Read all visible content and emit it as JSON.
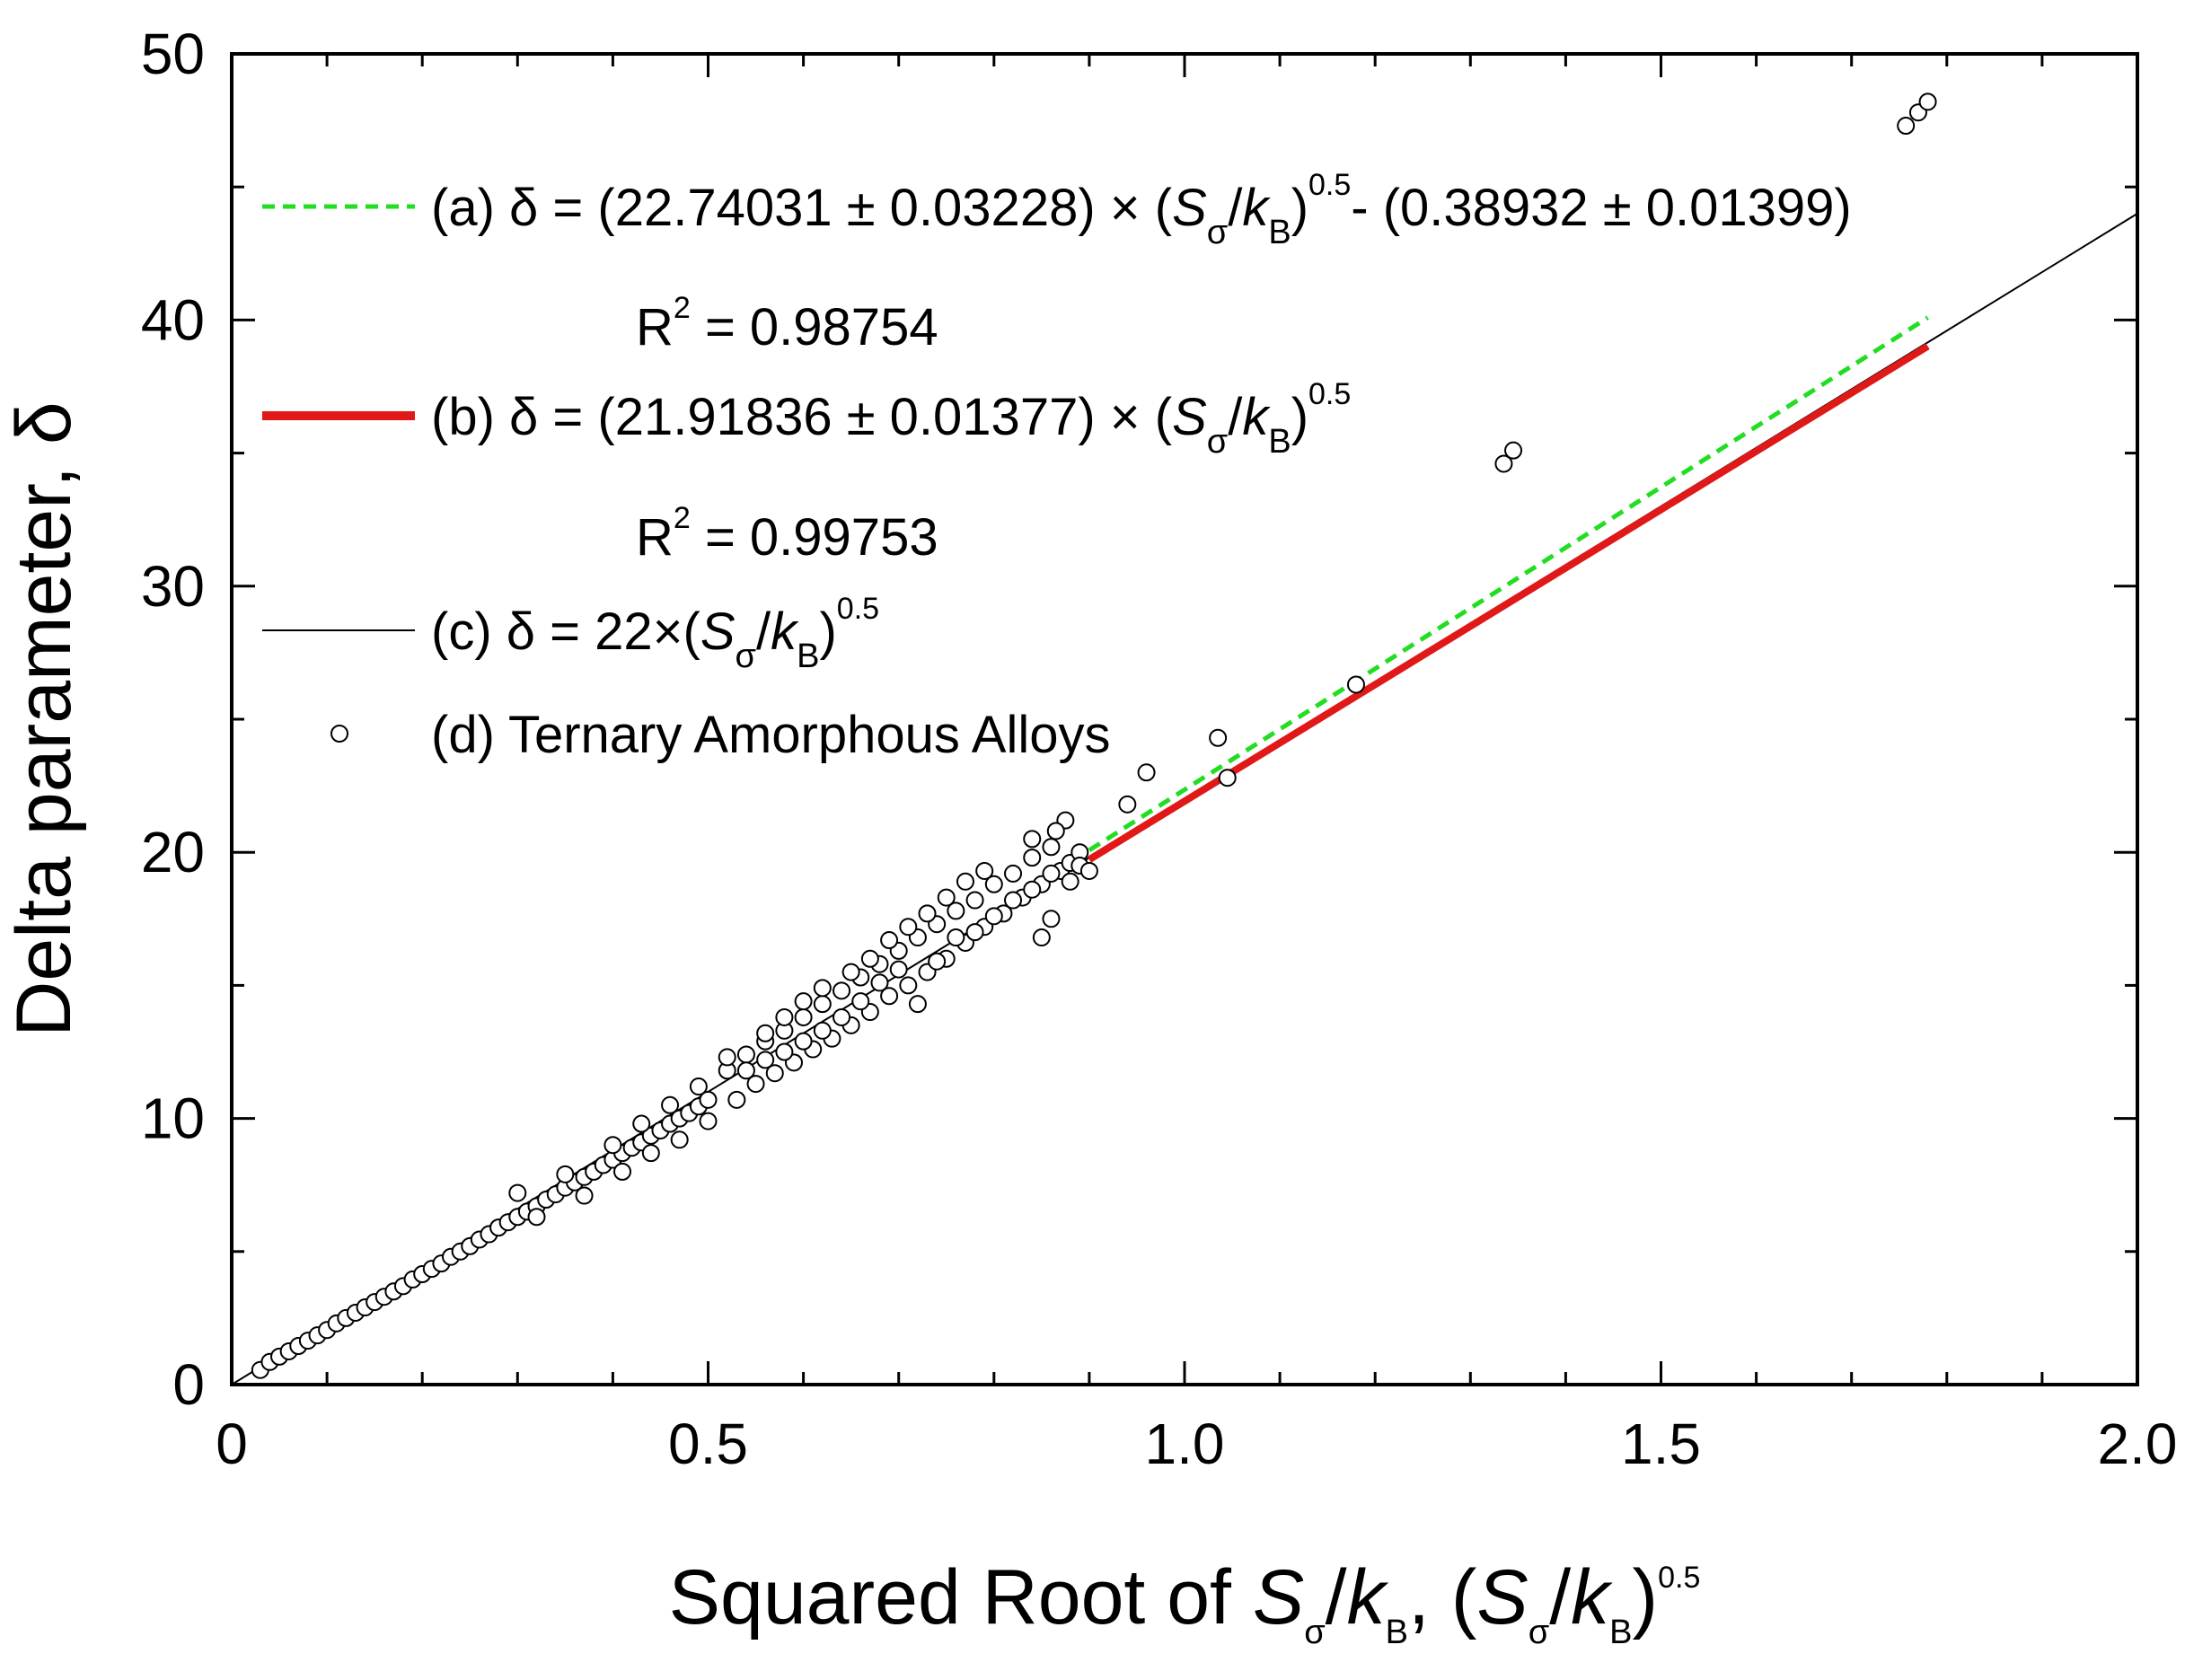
{
  "chart_data": {
    "type": "scatter",
    "xlabel": {
      "prefix": "Squared Root of ",
      "S": "S",
      "sigma": "σ",
      "slash": "/",
      "k": "k",
      "B": "B",
      "sep": ", (",
      "close": ")",
      "exp": "0.5"
    },
    "ylabel": "Delta parameter, δ",
    "xlim": [
      0,
      2.0
    ],
    "ylim": [
      0,
      50
    ],
    "x_ticks": [
      0,
      0.5,
      1.0,
      1.5,
      2.0
    ],
    "x_tick_labels": [
      "0",
      "0.5",
      "1.0",
      "1.5",
      "2.0"
    ],
    "y_ticks": [
      0,
      10,
      20,
      30,
      40,
      50
    ],
    "y_tick_labels": [
      "0",
      "10",
      "20",
      "30",
      "40",
      "50"
    ],
    "colors": {
      "fit_a": "#22dd22",
      "fit_b": "#e01818",
      "fit_c": "#000000",
      "points": "#000000"
    },
    "legend": {
      "a_prefix": "(a) δ = (22.74031 ± 0.03228) × (",
      "a_suffix": "- (0.38932 ± 0.01399)",
      "a_r2": "= 0.98754",
      "b_prefix": "(b) δ = (21.91836 ±  0.01377) × (",
      "b_r2": "= 0.99753",
      "c_prefix": "(c) δ = 22×(",
      "d_label": "(d) Ternary Amorphous Alloys",
      "R": "R",
      "two": "2",
      "S": "S",
      "sigma": "σ",
      "slash": "/",
      "k": "k",
      "B": "B",
      "close": ")",
      "exp": "0.5"
    },
    "series": [
      {
        "key": "a",
        "kind": "line",
        "style": "dashed",
        "slope": 22.74031,
        "intercept": -0.38932,
        "x_range": [
          0.9,
          1.78
        ]
      },
      {
        "key": "b",
        "kind": "line",
        "style": "solid-thick",
        "slope": 21.91836,
        "intercept": 0,
        "x_range": [
          0.9,
          1.78
        ]
      },
      {
        "key": "c",
        "kind": "line",
        "style": "solid-thin",
        "slope": 22,
        "intercept": 0,
        "x_range": [
          0,
          2.0
        ]
      },
      {
        "key": "d",
        "kind": "scatter",
        "points": [
          [
            0.03,
            0.55
          ],
          [
            0.04,
            0.85
          ],
          [
            0.05,
            1.05
          ],
          [
            0.06,
            1.25
          ],
          [
            0.07,
            1.45
          ],
          [
            0.08,
            1.65
          ],
          [
            0.09,
            1.85
          ],
          [
            0.1,
            2.05
          ],
          [
            0.11,
            2.3
          ],
          [
            0.12,
            2.5
          ],
          [
            0.13,
            2.7
          ],
          [
            0.14,
            2.9
          ],
          [
            0.15,
            3.1
          ],
          [
            0.16,
            3.3
          ],
          [
            0.17,
            3.5
          ],
          [
            0.18,
            3.7
          ],
          [
            0.19,
            3.95
          ],
          [
            0.2,
            4.15
          ],
          [
            0.21,
            4.35
          ],
          [
            0.22,
            4.55
          ],
          [
            0.23,
            4.8
          ],
          [
            0.24,
            5.0
          ],
          [
            0.25,
            5.2
          ],
          [
            0.26,
            5.45
          ],
          [
            0.27,
            5.65
          ],
          [
            0.28,
            5.9
          ],
          [
            0.29,
            6.1
          ],
          [
            0.3,
            6.3
          ],
          [
            0.31,
            6.5
          ],
          [
            0.32,
            6.7
          ],
          [
            0.33,
            6.95
          ],
          [
            0.34,
            7.15
          ],
          [
            0.35,
            7.4
          ],
          [
            0.36,
            7.6
          ],
          [
            0.37,
            7.8
          ],
          [
            0.38,
            8.0
          ],
          [
            0.39,
            8.25
          ],
          [
            0.4,
            8.45
          ],
          [
            0.41,
            8.7
          ],
          [
            0.42,
            8.9
          ],
          [
            0.43,
            9.1
          ],
          [
            0.44,
            9.35
          ],
          [
            0.45,
            9.55
          ],
          [
            0.46,
            9.8
          ],
          [
            0.47,
            10.0
          ],
          [
            0.48,
            10.2
          ],
          [
            0.49,
            10.45
          ],
          [
            0.5,
            10.7
          ],
          [
            0.3,
            7.2
          ],
          [
            0.32,
            6.3
          ],
          [
            0.35,
            7.9
          ],
          [
            0.37,
            7.1
          ],
          [
            0.4,
            9.0
          ],
          [
            0.41,
            8.0
          ],
          [
            0.43,
            9.8
          ],
          [
            0.44,
            8.7
          ],
          [
            0.46,
            10.5
          ],
          [
            0.47,
            9.2
          ],
          [
            0.49,
            11.2
          ],
          [
            0.5,
            9.9
          ],
          [
            0.52,
            11.8
          ],
          [
            0.53,
            10.7
          ],
          [
            0.54,
            12.4
          ],
          [
            0.55,
            11.3
          ],
          [
            0.56,
            12.9
          ],
          [
            0.57,
            11.7
          ],
          [
            0.58,
            13.3
          ],
          [
            0.59,
            12.1
          ],
          [
            0.6,
            13.8
          ],
          [
            0.61,
            12.6
          ],
          [
            0.62,
            14.3
          ],
          [
            0.63,
            13.0
          ],
          [
            0.64,
            14.8
          ],
          [
            0.65,
            13.5
          ],
          [
            0.66,
            15.3
          ],
          [
            0.67,
            14.0
          ],
          [
            0.68,
            15.8
          ],
          [
            0.69,
            14.6
          ],
          [
            0.7,
            16.3
          ],
          [
            0.71,
            15.0
          ],
          [
            0.72,
            16.8
          ],
          [
            0.73,
            15.5
          ],
          [
            0.74,
            17.3
          ],
          [
            0.75,
            16.0
          ],
          [
            0.76,
            17.8
          ],
          [
            0.77,
            16.6
          ],
          [
            0.78,
            18.2
          ],
          [
            0.79,
            17.2
          ],
          [
            0.8,
            18.8
          ],
          [
            0.81,
            17.7
          ],
          [
            0.82,
            19.2
          ],
          [
            0.83,
            18.3
          ],
          [
            0.84,
            19.8
          ],
          [
            0.85,
            18.8
          ],
          [
            0.86,
            20.2
          ],
          [
            0.87,
            19.3
          ],
          [
            0.52,
            12.3
          ],
          [
            0.54,
            11.8
          ],
          [
            0.56,
            12.2
          ],
          [
            0.58,
            12.5
          ],
          [
            0.6,
            12.9
          ],
          [
            0.62,
            13.3
          ],
          [
            0.64,
            13.8
          ],
          [
            0.66,
            14.4
          ],
          [
            0.68,
            15.1
          ],
          [
            0.7,
            15.6
          ],
          [
            0.72,
            14.3
          ],
          [
            0.74,
            15.9
          ],
          [
            0.76,
            16.8
          ],
          [
            0.78,
            17.0
          ],
          [
            0.8,
            17.6
          ],
          [
            0.82,
            18.2
          ],
          [
            0.84,
            18.6
          ],
          [
            0.86,
            19.2
          ],
          [
            0.88,
            19.6
          ],
          [
            0.89,
            20.0
          ],
          [
            0.875,
            21.2
          ],
          [
            0.865,
            20.8
          ],
          [
            0.84,
            20.5
          ],
          [
            0.85,
            16.8
          ],
          [
            0.88,
            18.9
          ],
          [
            0.89,
            19.5
          ],
          [
            0.9,
            19.3
          ],
          [
            0.86,
            17.5
          ],
          [
            0.65,
            15.5
          ],
          [
            0.67,
            16.0
          ],
          [
            0.69,
            16.7
          ],
          [
            0.71,
            17.2
          ],
          [
            0.73,
            17.7
          ],
          [
            0.75,
            18.3
          ],
          [
            0.77,
            18.9
          ],
          [
            0.79,
            19.3
          ],
          [
            0.62,
            14.9
          ],
          [
            0.6,
            14.4
          ],
          [
            0.58,
            13.8
          ],
          [
            0.56,
            13.2
          ],
          [
            0.94,
            21.8
          ],
          [
            0.96,
            23.0
          ],
          [
            1.035,
            24.3
          ],
          [
            1.045,
            22.8
          ],
          [
            1.18,
            26.3
          ],
          [
            1.335,
            34.6
          ],
          [
            1.345,
            35.1
          ],
          [
            1.757,
            47.3
          ],
          [
            1.77,
            47.8
          ],
          [
            1.78,
            48.2
          ]
        ]
      }
    ]
  }
}
